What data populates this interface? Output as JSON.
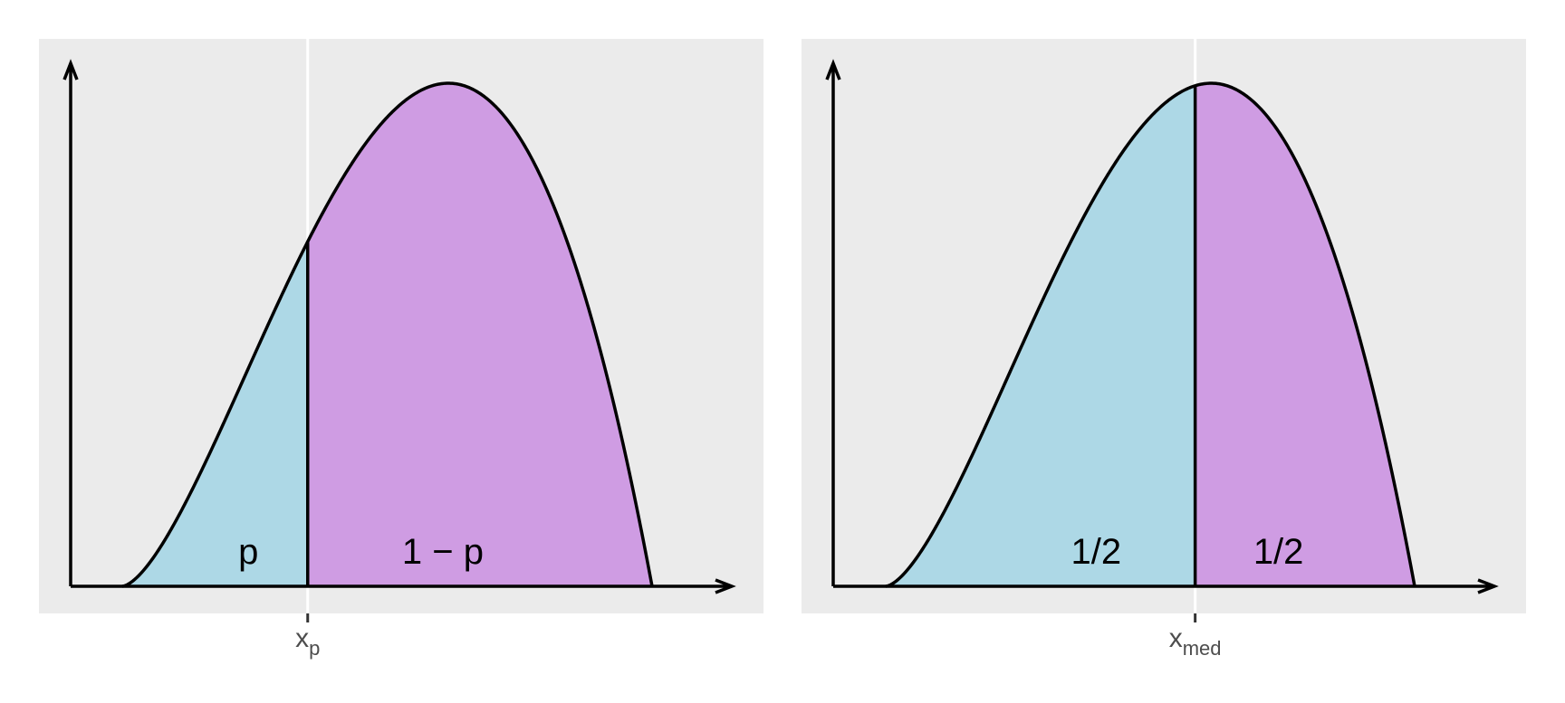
{
  "colors": {
    "panel_bg": "#EBEBEB",
    "lower_fill": "#ADD8E6",
    "upper_fill": "#CF9CE3",
    "curve": "#000000",
    "tick_text": "#4D4D4D"
  },
  "panels": [
    {
      "split_fraction": 0.35,
      "lower_label": "p",
      "upper_label": "1 − p",
      "tick_main": "x",
      "tick_sub": "p"
    },
    {
      "split_fraction": 0.585,
      "lower_label": "1/2",
      "upper_label": "1/2",
      "tick_main": "x",
      "tick_sub": "med"
    }
  ]
}
